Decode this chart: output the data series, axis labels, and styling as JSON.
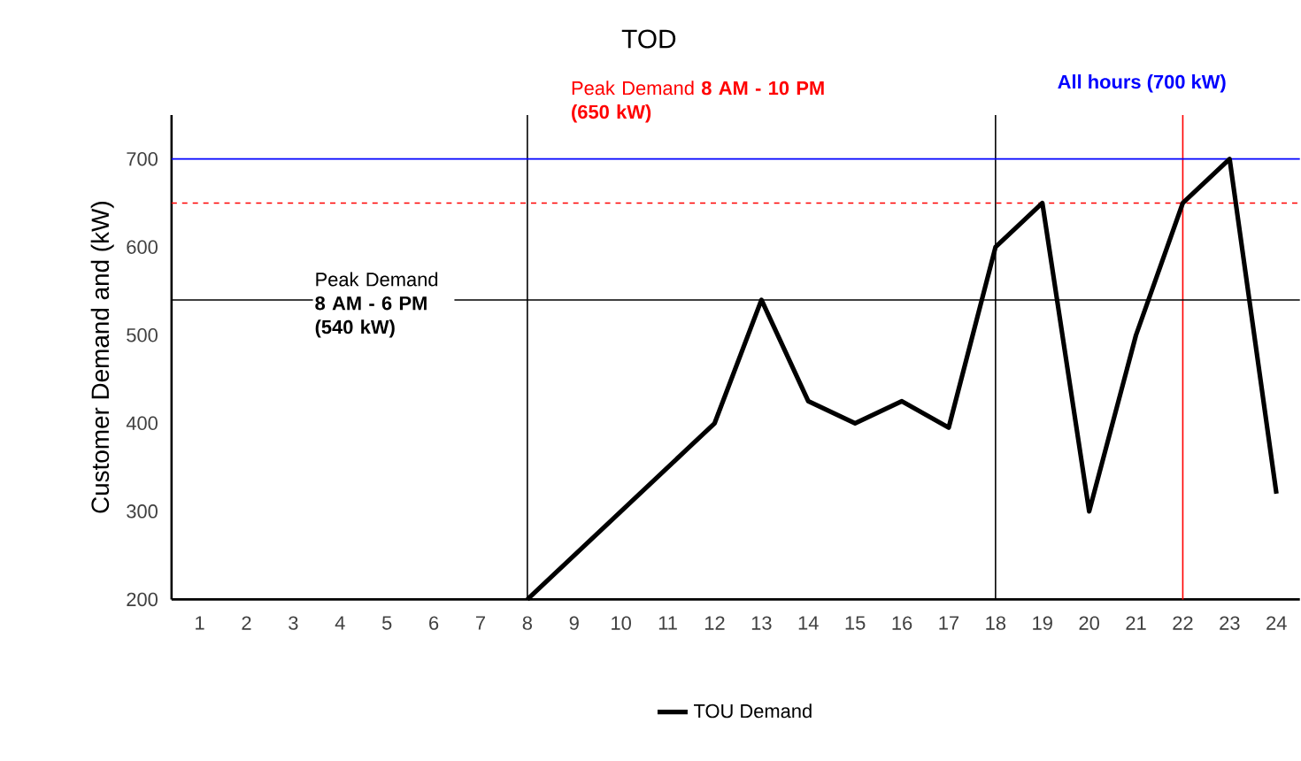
{
  "chart_data": {
    "type": "line",
    "title": "TOD",
    "ylabel": "Customer Demand and (kW)",
    "x": [
      8,
      9,
      10,
      11,
      12,
      13,
      14,
      15,
      16,
      17,
      18,
      19,
      20,
      21,
      22,
      23,
      24
    ],
    "series": [
      {
        "name": "TOU Demand",
        "color": "#000000",
        "values": [
          200,
          250,
          300,
          350,
          400,
          540,
          425,
          400,
          425,
          395,
          600,
          650,
          300,
          500,
          650,
          700,
          320
        ]
      }
    ],
    "xlim": [
      0.4,
      24.5
    ],
    "xticks": [
      1,
      2,
      3,
      4,
      5,
      6,
      7,
      8,
      9,
      10,
      11,
      12,
      13,
      14,
      15,
      16,
      17,
      18,
      19,
      20,
      21,
      22,
      23,
      24
    ],
    "ylim": [
      200,
      750
    ],
    "yticks": [
      200,
      300,
      400,
      500,
      600,
      700
    ],
    "ref_lines": [
      {
        "axis": "x",
        "value": 8,
        "color": "#000000"
      },
      {
        "axis": "x",
        "value": 18,
        "color": "#000000"
      },
      {
        "axis": "x",
        "value": 22,
        "color": "#ff0000"
      },
      {
        "axis": "y",
        "value": 540,
        "color": "#000000"
      },
      {
        "axis": "y",
        "value": 650,
        "color": "#ff0000",
        "line_style": "dashed"
      },
      {
        "axis": "y",
        "value": 700,
        "color": "#0000ff"
      }
    ],
    "annotations": [
      "Peak Demand **8 AM - 6 PM (540 kW)**",
      "Peak Demand **8 AM - 10 PM (650 kW)**",
      "All hours (700 kW)"
    ],
    "legend": "bottom",
    "line_style": "solid",
    "marker": "none"
  }
}
